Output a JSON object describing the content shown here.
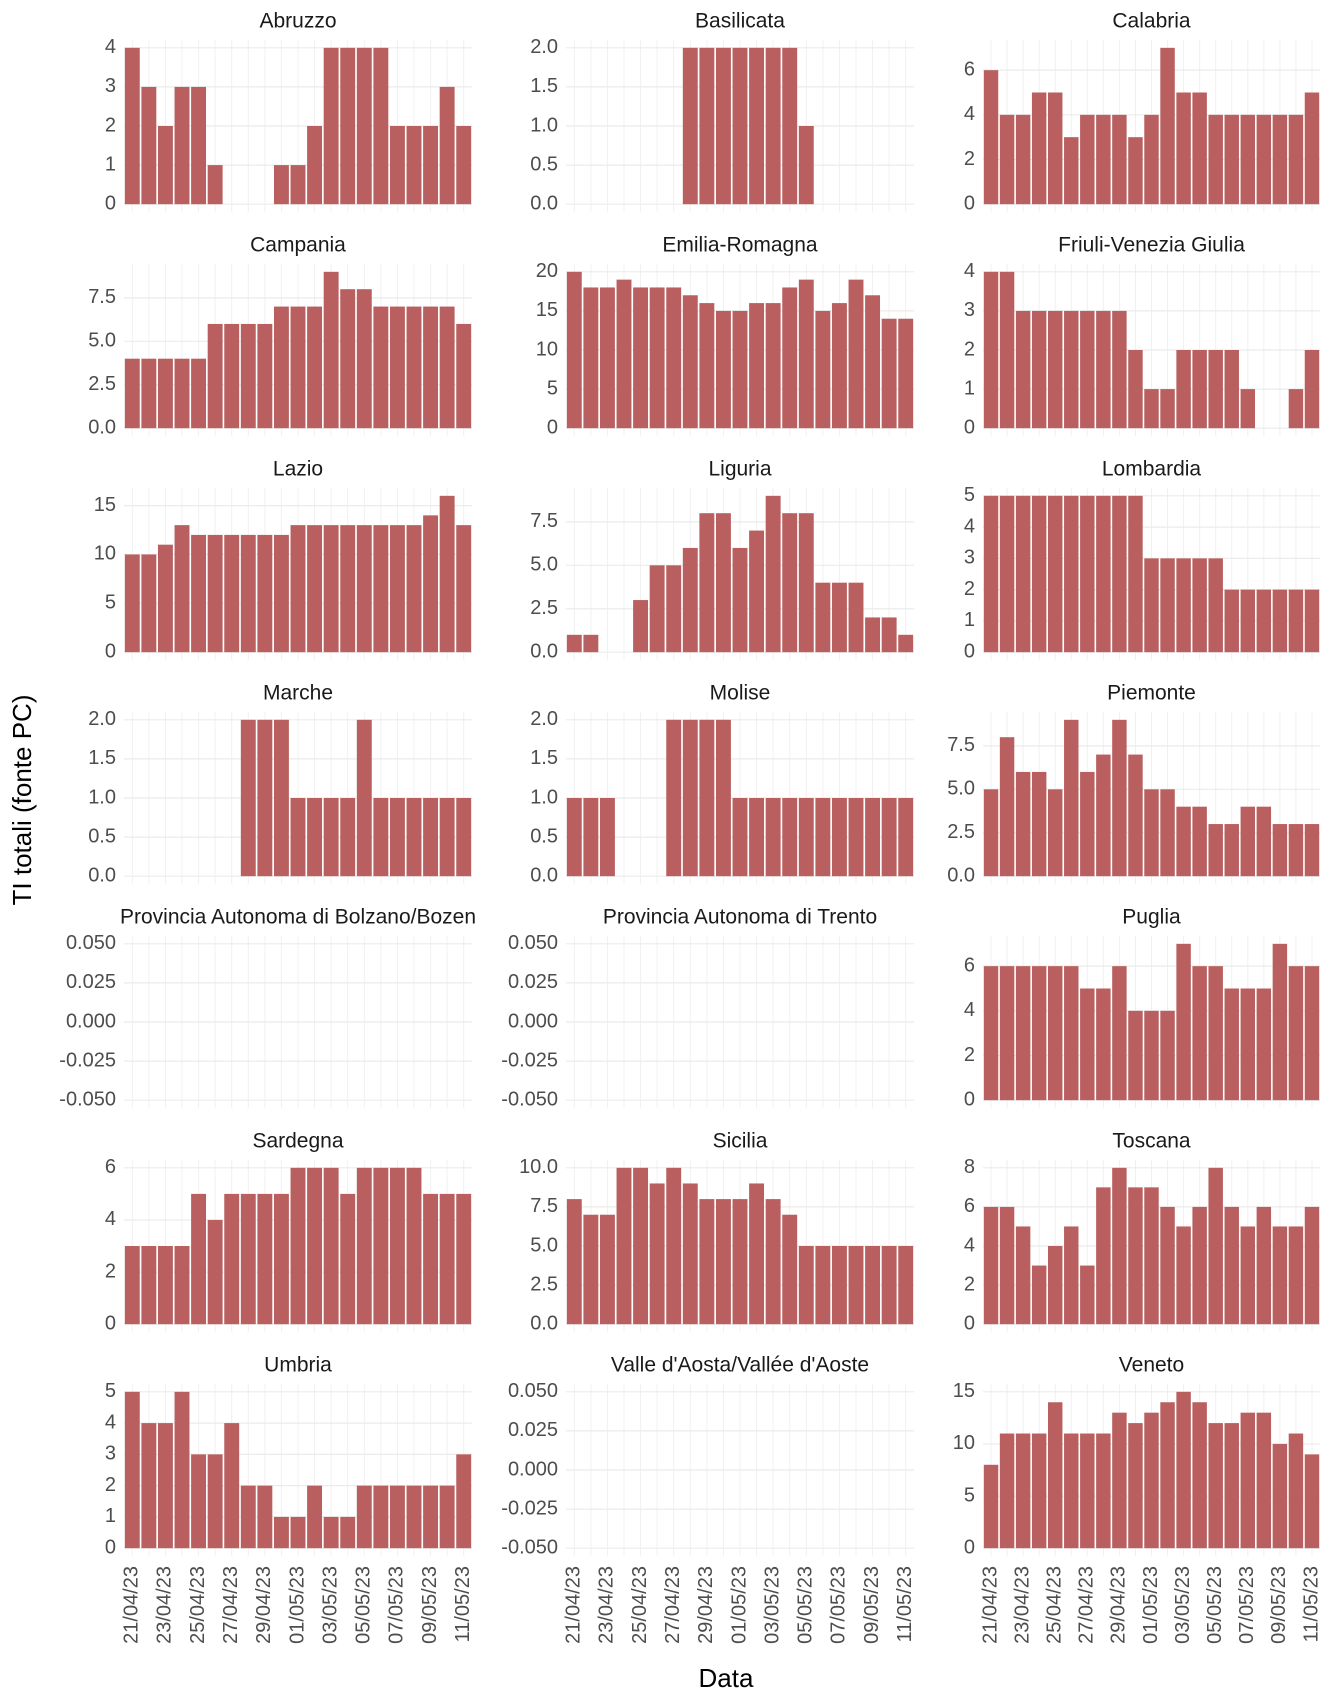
{
  "chart_data": {
    "type": "bar",
    "y_label": "TI totali (fonte PC)",
    "x_label": "Data",
    "color": "#b95f5f",
    "grid": true,
    "categories": [
      "21/04/23",
      null,
      "23/04/23",
      null,
      "25/04/23",
      null,
      "27/04/23",
      null,
      "29/04/23",
      null,
      "01/05/23",
      null,
      "03/05/23",
      null,
      "05/05/23",
      null,
      "07/05/23",
      null,
      "09/05/23",
      null,
      "11/05/23"
    ],
    "facets": [
      {
        "title": "Abruzzo",
        "values": [
          4,
          3,
          2,
          3,
          3,
          1,
          null,
          null,
          null,
          1,
          1,
          2,
          4,
          4,
          4,
          4,
          2,
          2,
          2,
          3,
          2
        ],
        "ylim": [
          -0.2,
          4.2
        ],
        "yticks": [
          0,
          1,
          2,
          3,
          4
        ]
      },
      {
        "title": "Basilicata",
        "values": [
          null,
          null,
          null,
          null,
          null,
          null,
          null,
          2,
          2,
          2,
          2,
          2,
          2,
          2,
          1,
          null,
          null,
          null,
          null,
          null,
          null
        ],
        "ylim": [
          -0.1,
          2.1
        ],
        "yticks": [
          {
            "value": 0,
            "label": "0.0"
          },
          0.5,
          {
            "value": 1,
            "label": "1.0"
          },
          1.5,
          {
            "value": 2,
            "label": "2.0"
          }
        ]
      },
      {
        "title": "Calabria",
        "values": [
          6,
          4,
          4,
          5,
          5,
          3,
          4,
          4,
          4,
          3,
          4,
          7,
          5,
          5,
          4,
          4,
          4,
          4,
          4,
          4,
          5
        ],
        "ylim": [
          -0.35,
          7.35
        ],
        "yticks": [
          0,
          2,
          4,
          6
        ]
      },
      {
        "title": "Campania",
        "values": [
          4,
          4,
          4,
          4,
          4,
          6,
          6,
          6,
          6,
          7,
          7,
          7,
          9,
          8,
          8,
          7,
          7,
          7,
          7,
          7,
          6
        ],
        "ylim": [
          -0.45,
          9.45
        ],
        "yticks": [
          {
            "value": 0,
            "label": "0.0"
          },
          2.5,
          {
            "value": 5,
            "label": "5.0"
          },
          7.5
        ]
      },
      {
        "title": "Emilia-Romagna",
        "values": [
          20,
          18,
          18,
          19,
          18,
          18,
          18,
          17,
          16,
          15,
          15,
          16,
          16,
          18,
          19,
          15,
          16,
          19,
          17,
          14,
          14
        ],
        "ylim": [
          -1,
          21
        ],
        "yticks": [
          0,
          5,
          10,
          15,
          20
        ]
      },
      {
        "title": "Friuli-Venezia Giulia",
        "values": [
          4,
          4,
          3,
          3,
          3,
          3,
          3,
          3,
          3,
          2,
          1,
          1,
          2,
          2,
          2,
          2,
          1,
          null,
          null,
          1,
          2
        ],
        "ylim": [
          -0.2,
          4.2
        ],
        "yticks": [
          0,
          1,
          2,
          3,
          4
        ]
      },
      {
        "title": "Lazio",
        "values": [
          10,
          10,
          11,
          13,
          12,
          12,
          12,
          12,
          12,
          12,
          13,
          13,
          13,
          13,
          13,
          13,
          13,
          13,
          14,
          16,
          13
        ],
        "ylim": [
          -0.8,
          16.8
        ],
        "yticks": [
          0,
          5,
          10,
          15
        ]
      },
      {
        "title": "Liguria",
        "values": [
          1,
          1,
          null,
          null,
          3,
          5,
          5,
          6,
          8,
          8,
          6,
          7,
          9,
          8,
          8,
          4,
          4,
          4,
          2,
          2,
          1
        ],
        "ylim": [
          -0.45,
          9.45
        ],
        "yticks": [
          {
            "value": 0,
            "label": "0.0"
          },
          2.5,
          {
            "value": 5,
            "label": "5.0"
          },
          7.5
        ]
      },
      {
        "title": "Lombardia",
        "values": [
          5,
          5,
          5,
          5,
          5,
          5,
          5,
          5,
          5,
          5,
          3,
          3,
          3,
          3,
          3,
          2,
          2,
          2,
          2,
          2,
          2
        ],
        "ylim": [
          -0.25,
          5.25
        ],
        "yticks": [
          0,
          1,
          2,
          3,
          4,
          5
        ]
      },
      {
        "title": "Marche",
        "values": [
          null,
          null,
          null,
          null,
          null,
          null,
          null,
          2,
          2,
          2,
          1,
          1,
          1,
          1,
          2,
          1,
          1,
          1,
          1,
          1,
          1
        ],
        "ylim": [
          -0.1,
          2.1
        ],
        "yticks": [
          {
            "value": 0,
            "label": "0.0"
          },
          0.5,
          {
            "value": 1,
            "label": "1.0"
          },
          1.5,
          {
            "value": 2,
            "label": "2.0"
          }
        ]
      },
      {
        "title": "Molise",
        "values": [
          1,
          1,
          1,
          null,
          null,
          null,
          2,
          2,
          2,
          2,
          1,
          1,
          1,
          1,
          1,
          1,
          1,
          1,
          1,
          1,
          1
        ],
        "ylim": [
          -0.1,
          2.1
        ],
        "yticks": [
          {
            "value": 0,
            "label": "0.0"
          },
          0.5,
          {
            "value": 1,
            "label": "1.0"
          },
          1.5,
          {
            "value": 2,
            "label": "2.0"
          }
        ]
      },
      {
        "title": "Piemonte",
        "values": [
          5,
          8,
          6,
          6,
          5,
          9,
          6,
          7,
          9,
          7,
          5,
          5,
          4,
          4,
          3,
          3,
          4,
          4,
          3,
          3,
          3
        ],
        "ylim": [
          -0.45,
          9.45
        ],
        "yticks": [
          {
            "value": 0,
            "label": "0.0"
          },
          2.5,
          {
            "value": 5,
            "label": "5.0"
          },
          7.5
        ]
      },
      {
        "title": "Provincia Autonoma di Bolzano/Bozen",
        "values": [
          null,
          null,
          null,
          null,
          null,
          null,
          null,
          null,
          null,
          null,
          null,
          null,
          null,
          null,
          null,
          null,
          null,
          null,
          null,
          null,
          null
        ],
        "ylim": [
          -0.055,
          0.055
        ],
        "yticks": [
          {
            "value": -0.05,
            "label": "-0.050"
          },
          -0.025,
          {
            "value": 0,
            "label": "0.000"
          },
          0.025,
          {
            "value": 0.05,
            "label": "0.050"
          }
        ]
      },
      {
        "title": "Provincia Autonoma di Trento",
        "values": [
          null,
          null,
          null,
          null,
          null,
          null,
          null,
          null,
          null,
          null,
          null,
          null,
          null,
          null,
          null,
          null,
          null,
          null,
          null,
          null,
          null
        ],
        "ylim": [
          -0.055,
          0.055
        ],
        "yticks": [
          {
            "value": -0.05,
            "label": "-0.050"
          },
          -0.025,
          {
            "value": 0,
            "label": "0.000"
          },
          0.025,
          {
            "value": 0.05,
            "label": "0.050"
          }
        ]
      },
      {
        "title": "Puglia",
        "values": [
          6,
          6,
          6,
          6,
          6,
          6,
          5,
          5,
          6,
          4,
          4,
          4,
          7,
          6,
          6,
          5,
          5,
          5,
          7,
          6,
          6
        ],
        "ylim": [
          -0.35,
          7.35
        ],
        "yticks": [
          0,
          2,
          4,
          6
        ]
      },
      {
        "title": "Sardegna",
        "values": [
          3,
          3,
          3,
          3,
          5,
          4,
          5,
          5,
          5,
          5,
          6,
          6,
          6,
          5,
          6,
          6,
          6,
          6,
          5,
          5,
          5
        ],
        "ylim": [
          -0.3,
          6.3
        ],
        "yticks": [
          0,
          2,
          4,
          6
        ]
      },
      {
        "title": "Sicilia",
        "values": [
          8,
          7,
          7,
          10,
          10,
          9,
          10,
          9,
          8,
          8,
          8,
          9,
          8,
          7,
          5,
          5,
          5,
          5,
          5,
          5,
          5
        ],
        "ylim": [
          -0.5,
          10.5
        ],
        "yticks": [
          {
            "value": 0,
            "label": "0.0"
          },
          2.5,
          {
            "value": 5,
            "label": "5.0"
          },
          7.5,
          {
            "value": 10,
            "label": "10.0"
          }
        ]
      },
      {
        "title": "Toscana",
        "values": [
          6,
          6,
          5,
          3,
          4,
          5,
          3,
          7,
          8,
          7,
          7,
          6,
          5,
          6,
          8,
          6,
          5,
          6,
          5,
          5,
          6
        ],
        "ylim": [
          -0.4,
          8.4
        ],
        "yticks": [
          0,
          2,
          4,
          6,
          8
        ]
      },
      {
        "title": "Umbria",
        "values": [
          5,
          4,
          4,
          5,
          3,
          3,
          4,
          2,
          2,
          1,
          1,
          2,
          1,
          1,
          2,
          2,
          2,
          2,
          2,
          2,
          3
        ],
        "ylim": [
          -0.25,
          5.25
        ],
        "yticks": [
          0,
          1,
          2,
          3,
          4,
          5
        ]
      },
      {
        "title": "Valle d'Aosta/Vallée d'Aoste",
        "values": [
          null,
          null,
          null,
          null,
          null,
          null,
          null,
          null,
          null,
          null,
          null,
          null,
          null,
          null,
          null,
          null,
          null,
          null,
          null,
          null,
          null
        ],
        "ylim": [
          -0.055,
          0.055
        ],
        "yticks": [
          {
            "value": -0.05,
            "label": "-0.050"
          },
          -0.025,
          {
            "value": 0,
            "label": "0.000"
          },
          0.025,
          {
            "value": 0.05,
            "label": "0.050"
          }
        ]
      },
      {
        "title": "Veneto",
        "values": [
          8,
          11,
          11,
          11,
          14,
          11,
          11,
          11,
          13,
          12,
          13,
          14,
          15,
          14,
          12,
          12,
          13,
          13,
          10,
          11,
          9
        ],
        "ylim": [
          -0.75,
          15.75
        ],
        "yticks": [
          0,
          5,
          10,
          15
        ]
      }
    ]
  }
}
